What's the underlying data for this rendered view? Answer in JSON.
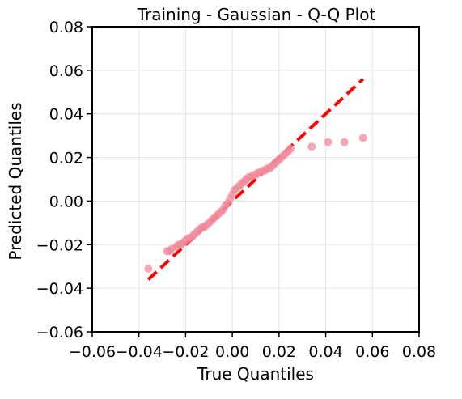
{
  "chart_data": {
    "type": "scatter",
    "title": "Training - Gaussian - Q-Q Plot",
    "xlabel": "True Quantiles",
    "ylabel": "Predicted Quantiles",
    "xlim": [
      -0.06,
      0.08
    ],
    "ylim": [
      -0.06,
      0.08
    ],
    "x_ticks": [
      -0.06,
      -0.04,
      -0.02,
      0.0,
      0.02,
      0.04,
      0.06,
      0.08
    ],
    "y_ticks": [
      -0.06,
      -0.04,
      -0.02,
      0.0,
      0.02,
      0.04,
      0.06,
      0.08
    ],
    "x_tick_labels": [
      "−0.06",
      "−0.04",
      "−0.02",
      "0.00",
      "0.02",
      "0.04",
      "0.06",
      "0.08"
    ],
    "y_tick_labels": [
      "−0.06",
      "−0.04",
      "−0.02",
      "0.00",
      "0.02",
      "0.04",
      "0.06",
      "0.08"
    ],
    "grid": true,
    "colors": {
      "points": "#f08a9b",
      "reference_line": "#ff0000"
    },
    "reference_line": {
      "x": [
        -0.036,
        0.056
      ],
      "y": [
        -0.036,
        0.056
      ]
    },
    "points": {
      "x": [
        -0.036,
        -0.028,
        -0.027,
        -0.026,
        -0.024,
        -0.023,
        -0.022,
        -0.021,
        -0.02,
        -0.019,
        -0.018,
        -0.017,
        -0.016,
        -0.015,
        -0.014,
        -0.013,
        -0.012,
        -0.011,
        -0.01,
        -0.009,
        -0.008,
        -0.007,
        -0.006,
        -0.005,
        -0.004,
        -0.003,
        -0.002,
        -0.001,
        0.0,
        0.001,
        0.002,
        0.003,
        0.004,
        0.005,
        0.006,
        0.007,
        0.008,
        0.009,
        0.01,
        0.011,
        0.012,
        0.013,
        0.014,
        0.015,
        0.016,
        0.017,
        0.018,
        0.019,
        0.02,
        0.021,
        0.022,
        0.023,
        0.024,
        0.025,
        0.034,
        0.041,
        0.048,
        0.056
      ],
      "y": [
        -0.031,
        -0.023,
        -0.023,
        -0.022,
        -0.021,
        -0.02,
        -0.02,
        -0.019,
        -0.018,
        -0.017,
        -0.017,
        -0.016,
        -0.015,
        -0.014,
        -0.013,
        -0.012,
        -0.012,
        -0.011,
        -0.01,
        -0.009,
        -0.008,
        -0.007,
        -0.006,
        -0.005,
        -0.004,
        -0.002,
        -0.001,
        0.001,
        0.003,
        0.005,
        0.006,
        0.007,
        0.008,
        0.009,
        0.01,
        0.011,
        0.011,
        0.012,
        0.012,
        0.013,
        0.013,
        0.014,
        0.014,
        0.015,
        0.015,
        0.016,
        0.017,
        0.018,
        0.019,
        0.02,
        0.021,
        0.022,
        0.023,
        0.024,
        0.025,
        0.027,
        0.027,
        0.029
      ]
    }
  }
}
